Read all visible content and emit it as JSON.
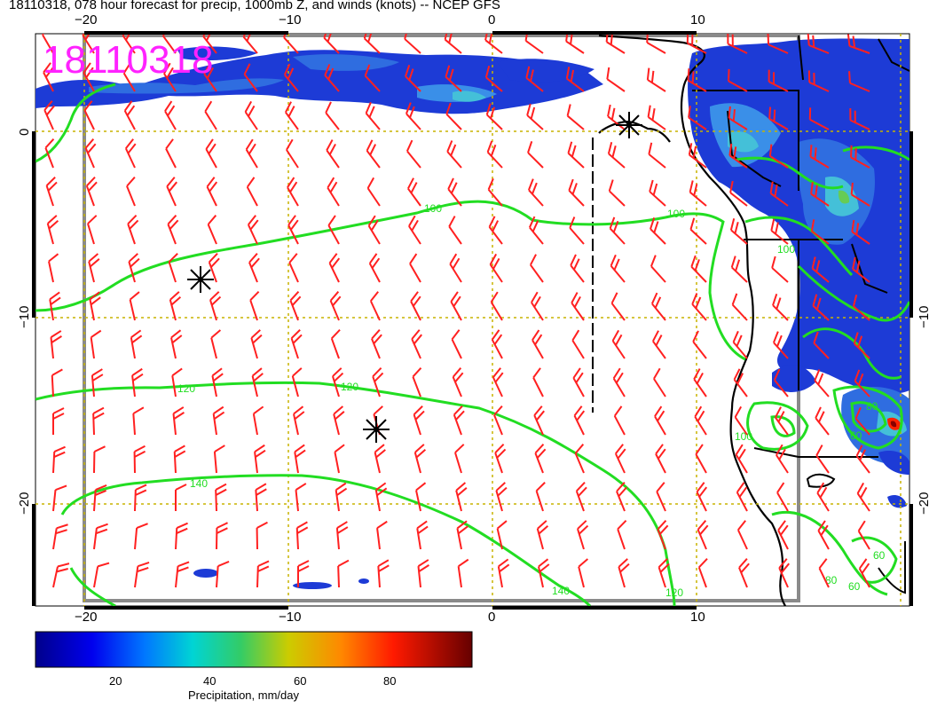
{
  "header": {
    "title": "18110318, 078 hour forecast for precip, 1000mb Z, and winds (knots) -- NCEP GFS",
    "stamp": "18110318"
  },
  "axes": {
    "top_lon_labels": [
      "−20",
      "−10",
      "0",
      "10"
    ],
    "bottom_lon_labels": [
      "−20",
      "−10",
      "0",
      "10"
    ],
    "left_lat_labels": [
      "0",
      "−10",
      "−20"
    ],
    "right_lat_labels": [
      "−10",
      "−20"
    ]
  },
  "contours": {
    "levels": [
      "60",
      "80",
      "100",
      "120",
      "140"
    ],
    "labels": [
      "100",
      "100",
      "100",
      "120",
      "120",
      "140",
      "140",
      "120",
      "100",
      "60",
      "60",
      "80",
      "60",
      "80"
    ]
  },
  "colorbar": {
    "ticks": [
      "20",
      "40",
      "60",
      "80"
    ],
    "label": "Precipitation, mm/day"
  },
  "colors": {
    "wind_barbs": "#ff2020",
    "contours": "#22dd22",
    "stamp": "#ff22ff",
    "grid": "#c8b400",
    "frame": "#808080"
  },
  "legend_icons": [
    "low-pressure-marker-icon"
  ]
}
